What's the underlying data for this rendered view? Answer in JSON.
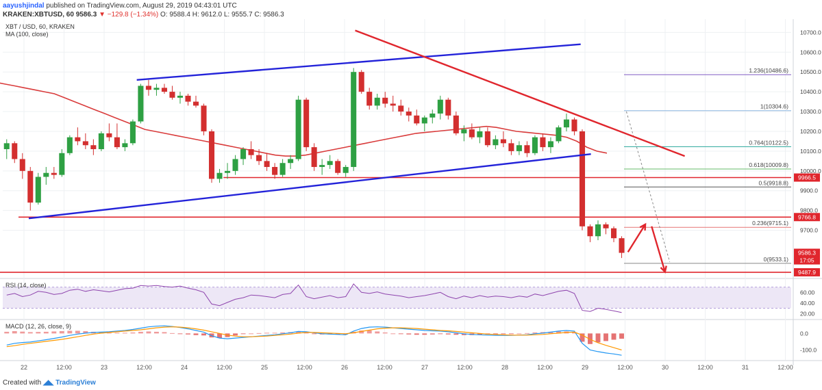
{
  "header": {
    "author": "aayushjindal",
    "published": "published on TradingView.com, August 29, 2019 04:43:01 UTC",
    "symbol": "KRAKEN:XBTUSD, 60",
    "last": "9586.3",
    "change": "▼ −129.8 (−1.34%)",
    "ohlc": "O: 9588.4  H: 9612.0  L: 9555.7  C: 9586.3"
  },
  "footer": {
    "created_with": "Created with",
    "brand": "TradingView"
  },
  "chart_data": {
    "type": "candlestick",
    "title": "XBT / USD, 60, KRAKEN",
    "ma_label": "MA (100, close)",
    "x_ticks": [
      "22",
      "12:00",
      "23",
      "12:00",
      "24",
      "12:00",
      "25",
      "12:00",
      "26",
      "12:00",
      "27",
      "12:00",
      "28",
      "12:00",
      "29",
      "12:00",
      "30",
      "12:00",
      "31",
      "12:00"
    ],
    "y_ticks": [
      9700,
      9800,
      9900,
      10000,
      10100,
      10200,
      10300,
      10400,
      10500,
      10600,
      10700
    ],
    "ylim": [
      9460,
      10760
    ],
    "colors": {
      "up": "#26a69a",
      "down": "#ef5350",
      "candle_up": "#2ea043",
      "candle_down": "#d32f2f",
      "trendline_blue": "#2323d9",
      "trendline_red": "#e0262d",
      "ma": "#d93b3b"
    },
    "ohlc_series": [
      [
        10110,
        10160,
        10060,
        10140
      ],
      [
        10140,
        10150,
        10040,
        10060
      ],
      [
        10060,
        10090,
        9960,
        10000
      ],
      [
        10000,
        10020,
        9800,
        9840
      ],
      [
        9840,
        9990,
        9830,
        9970
      ],
      [
        9970,
        10020,
        9930,
        9990
      ],
      [
        9990,
        10020,
        9960,
        9980
      ],
      [
        9980,
        10110,
        9970,
        10090
      ],
      [
        10090,
        10180,
        10080,
        10170
      ],
      [
        10170,
        10220,
        10130,
        10150
      ],
      [
        10150,
        10190,
        10110,
        10130
      ],
      [
        10130,
        10160,
        10080,
        10110
      ],
      [
        10110,
        10200,
        10100,
        10190
      ],
      [
        10190,
        10240,
        10150,
        10170
      ],
      [
        10170,
        10240,
        10110,
        10120
      ],
      [
        10120,
        10160,
        10100,
        10140
      ],
      [
        10140,
        10260,
        10130,
        10250
      ],
      [
        10250,
        10440,
        10240,
        10430
      ],
      [
        10430,
        10460,
        10380,
        10410
      ],
      [
        10410,
        10440,
        10380,
        10420
      ],
      [
        10420,
        10440,
        10390,
        10400
      ],
      [
        10400,
        10430,
        10360,
        10370
      ],
      [
        10370,
        10400,
        10340,
        10380
      ],
      [
        10380,
        10390,
        10330,
        10350
      ],
      [
        10350,
        10380,
        10320,
        10330
      ],
      [
        10330,
        10340,
        10180,
        10200
      ],
      [
        10200,
        10210,
        9940,
        9960
      ],
      [
        9960,
        10010,
        9940,
        9990
      ],
      [
        9990,
        10040,
        9960,
        10000
      ],
      [
        10000,
        10080,
        9980,
        10060
      ],
      [
        10060,
        10120,
        10030,
        10110
      ],
      [
        10110,
        10150,
        10060,
        10080
      ],
      [
        10080,
        10110,
        10030,
        10050
      ],
      [
        10050,
        10090,
        10000,
        10020
      ],
      [
        10020,
        10040,
        9960,
        9980
      ],
      [
        9980,
        10060,
        9970,
        10040
      ],
      [
        10040,
        10080,
        10010,
        10060
      ],
      [
        10060,
        10380,
        10050,
        10360
      ],
      [
        10360,
        10370,
        10100,
        10120
      ],
      [
        10120,
        10140,
        10000,
        10020
      ],
      [
        10020,
        10060,
        9980,
        10030
      ],
      [
        10030,
        10080,
        10010,
        10050
      ],
      [
        10050,
        10060,
        9980,
        9990
      ],
      [
        9990,
        10030,
        9970,
        10020
      ],
      [
        10020,
        10520,
        10000,
        10500
      ],
      [
        10500,
        10510,
        10390,
        10400
      ],
      [
        10400,
        10420,
        10310,
        10330
      ],
      [
        10330,
        10390,
        10310,
        10370
      ],
      [
        10370,
        10400,
        10320,
        10340
      ],
      [
        10340,
        10380,
        10300,
        10330
      ],
      [
        10330,
        10360,
        10280,
        10300
      ],
      [
        10300,
        10320,
        10250,
        10280
      ],
      [
        10280,
        10310,
        10230,
        10240
      ],
      [
        10240,
        10280,
        10200,
        10270
      ],
      [
        10270,
        10310,
        10240,
        10290
      ],
      [
        10290,
        10380,
        10260,
        10360
      ],
      [
        10360,
        10370,
        10260,
        10280
      ],
      [
        10280,
        10300,
        10180,
        10190
      ],
      [
        10190,
        10230,
        10150,
        10210
      ],
      [
        10210,
        10240,
        10160,
        10170
      ],
      [
        10170,
        10220,
        10140,
        10200
      ],
      [
        10200,
        10220,
        10120,
        10130
      ],
      [
        10130,
        10180,
        10110,
        10160
      ],
      [
        10160,
        10200,
        10120,
        10140
      ],
      [
        10140,
        10160,
        10080,
        10100
      ],
      [
        10100,
        10150,
        10080,
        10130
      ],
      [
        10130,
        10150,
        10070,
        10090
      ],
      [
        10090,
        10180,
        10080,
        10170
      ],
      [
        10170,
        10190,
        10100,
        10120
      ],
      [
        10120,
        10170,
        10090,
        10150
      ],
      [
        10150,
        10230,
        10140,
        10220
      ],
      [
        10220,
        10290,
        10200,
        10260
      ],
      [
        10260,
        10270,
        10180,
        10200
      ],
      [
        10200,
        10210,
        9700,
        9720
      ],
      [
        9720,
        9730,
        9640,
        9670
      ],
      [
        9670,
        9750,
        9650,
        9730
      ],
      [
        9730,
        9740,
        9680,
        9710
      ],
      [
        9710,
        9720,
        9640,
        9660
      ],
      [
        9660,
        9670,
        9560,
        9586
      ]
    ],
    "ma100": [
      10450,
      10440,
      10430,
      10420,
      10410,
      10400,
      10390,
      10370,
      10350,
      10330,
      10310,
      10290,
      10270,
      10250,
      10230,
      10210,
      10200,
      10190,
      10180,
      10170,
      10160,
      10150,
      10140,
      10130,
      10120,
      10110,
      10100,
      10090,
      10080,
      10075,
      10075,
      10080,
      10090,
      10100,
      10110,
      10120,
      10130,
      10140,
      10150,
      10160,
      10170,
      10180,
      10190,
      10195,
      10200,
      10205,
      10210,
      10215,
      10220,
      10225,
      10220,
      10210,
      10200,
      10195,
      10190,
      10185,
      10180,
      10170,
      10150,
      10120,
      10100,
      10090
    ],
    "fib_levels": [
      {
        "ratio": "1.236",
        "price": 10486.6,
        "label": "1.236(10486.6)",
        "color": "#7e57c2"
      },
      {
        "ratio": "1",
        "price": 10304.6,
        "label": "1(10304.6)",
        "color": "#8bb5e0"
      },
      {
        "ratio": "0.764",
        "price": 10122.5,
        "label": "0.764(10122.5)",
        "color": "#26a69a"
      },
      {
        "ratio": "0.618",
        "price": 10009.8,
        "label": "0.618(10009.8)",
        "color": "#66bb6a"
      },
      {
        "ratio": "0.5",
        "price": 9918.8,
        "label": "0.5(9918.8)",
        "color": "#555555"
      },
      {
        "ratio": "0.236",
        "price": 9715.1,
        "label": "0.236(9715.1)",
        "color": "#e57373"
      },
      {
        "ratio": "0",
        "price": 9533.1,
        "label": "0(9533.1)",
        "color": "#888888"
      }
    ],
    "horizontal_levels": [
      {
        "price": 9966.5,
        "label": "9966.5"
      },
      {
        "price": 9766.8,
        "label": "9766.8"
      },
      {
        "price": 9487.9,
        "label": "9487.9"
      }
    ],
    "price_tags": [
      {
        "price": 9586.3,
        "label": "9586.3",
        "color": "#e0262d"
      },
      {
        "price": 9548,
        "label": "17:05",
        "color": "#e0262d"
      }
    ],
    "rsi": {
      "label": "RSI (14, close)",
      "y_ticks": [
        20,
        40,
        60
      ],
      "ylim": [
        10,
        85
      ],
      "band": [
        30,
        70
      ],
      "values": [
        55,
        58,
        52,
        55,
        62,
        60,
        56,
        58,
        64,
        66,
        62,
        65,
        63,
        61,
        64,
        67,
        68,
        73,
        72,
        73,
        71,
        70,
        72,
        68,
        65,
        60,
        38,
        35,
        41,
        47,
        50,
        55,
        54,
        52,
        50,
        56,
        58,
        74,
        52,
        48,
        51,
        54,
        50,
        52,
        76,
        60,
        58,
        61,
        57,
        55,
        53,
        50,
        52,
        54,
        57,
        60,
        52,
        48,
        53,
        50,
        54,
        51,
        53,
        52,
        50,
        53,
        51,
        57,
        54,
        58,
        62,
        64,
        58,
        26,
        24,
        30,
        28,
        25,
        22
      ]
    },
    "macd": {
      "label": "MACD (12, 26, close, 9)",
      "y_ticks": [
        0.0,
        -100.0
      ],
      "ylim": [
        -160,
        80
      ],
      "macd": [
        -70,
        -60,
        -55,
        -52,
        -45,
        -38,
        -30,
        -22,
        -12,
        -4,
        2,
        6,
        8,
        10,
        14,
        18,
        24,
        32,
        40,
        44,
        46,
        42,
        36,
        28,
        18,
        8,
        -14,
        -28,
        -32,
        -28,
        -24,
        -20,
        -16,
        -12,
        -8,
        -2,
        4,
        12,
        10,
        4,
        -2,
        -4,
        -6,
        -8,
        14,
        30,
        38,
        40,
        38,
        34,
        30,
        26,
        22,
        18,
        16,
        14,
        10,
        4,
        -2,
        -6,
        -8,
        -10,
        -12,
        -12,
        -12,
        -10,
        -8,
        -2,
        2,
        8,
        14,
        18,
        14,
        -60,
        -100,
        -110,
        -118,
        -124,
        -132
      ],
      "signal": [
        -80,
        -74,
        -66,
        -60,
        -54,
        -48,
        -42,
        -36,
        -28,
        -20,
        -12,
        -4,
        2,
        6,
        10,
        14,
        18,
        22,
        28,
        34,
        38,
        40,
        38,
        34,
        28,
        20,
        10,
        0,
        -10,
        -16,
        -20,
        -20,
        -18,
        -16,
        -12,
        -8,
        -4,
        2,
        6,
        6,
        4,
        2,
        0,
        -2,
        4,
        12,
        20,
        28,
        32,
        34,
        34,
        32,
        30,
        26,
        22,
        18,
        16,
        12,
        8,
        4,
        0,
        -4,
        -6,
        -8,
        -10,
        -10,
        -10,
        -8,
        -6,
        -2,
        2,
        6,
        8,
        -10,
        -36,
        -56,
        -72,
        -86,
        -100
      ]
    },
    "trendlines": [
      {
        "name": "upper-channel",
        "color": "#2323d9",
        "from": [
          16.5,
          10460
        ],
        "to": [
          72.8,
          10640
        ]
      },
      {
        "name": "lower-channel",
        "color": "#2323d9",
        "from": [
          2.8,
          9760
        ],
        "to": [
          74.1,
          10085
        ]
      },
      {
        "name": "descending",
        "color": "#e0262d",
        "from": [
          44.2,
          10710
        ],
        "to": [
          86.0,
          10075
        ]
      }
    ],
    "arrows": [
      {
        "name": "up-arrow",
        "color": "#e0262d",
        "from": [
          78.8,
          9590
        ],
        "to": [
          81.0,
          9730
        ]
      },
      {
        "name": "down-arrow",
        "color": "#e0262d",
        "from": [
          81.8,
          9720
        ],
        "to": [
          83.5,
          9490
        ]
      }
    ]
  }
}
